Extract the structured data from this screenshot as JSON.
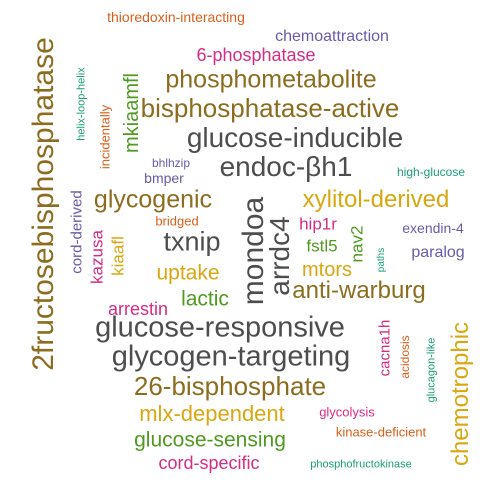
{
  "words": {
    "w01": "2fructosebisphosphatase",
    "w02": "glucose-responsive",
    "w03": "glycogen-targeting",
    "w04": "mondoa",
    "w05": "glucose-inducible",
    "w06": "bisphosphatase-active",
    "w07": "endoc-βh1",
    "w08": "phosphometabolite",
    "w09": "26-bisphosphate",
    "w10": "arrdc4",
    "w11": "txnip",
    "w12": "glycogenic",
    "w13": "xylitol-derived",
    "w14": "anti-warburg",
    "w15": "chemotrophic",
    "w16": "mlx-dependent",
    "w17": "glucose-sensing",
    "w18": "6-phosphatase",
    "w19": "mkiaamfl",
    "w20": "uptake",
    "w21": "mtors",
    "w22": "lactic",
    "w23": "cord-specific",
    "w24": "arrestin",
    "w25": "fstl5",
    "w26": "hip1r",
    "w27": "nav2",
    "w28": "kiaafl",
    "w29": "kazusa",
    "w30": "chemoattraction",
    "w31": "cacna1h",
    "w32": "paralog",
    "w33": "exendin-4",
    "w34": "thioredoxin-interacting",
    "w35": "cord-derived",
    "w36": "bmper",
    "w37": "bridged",
    "w38": "incidentally",
    "w39": "glycolysis",
    "w40": "kinase-deficient",
    "w41": "acidosis",
    "w42": "high-glucose",
    "w43": "bhlhzip",
    "w44": "helix-loop-helix",
    "w45": "paths",
    "w46": "glucagon-like",
    "w47": "phosphofructokinase"
  }
}
